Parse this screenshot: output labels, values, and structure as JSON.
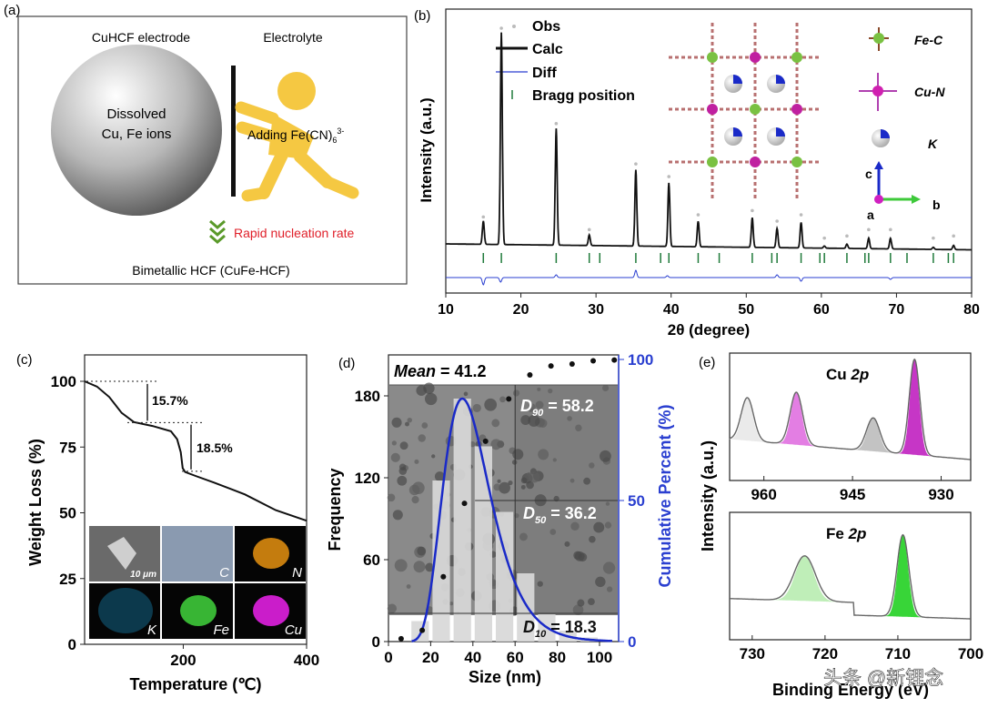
{
  "panel_a": {
    "label": "(a)",
    "electrode_title": "CuHCF electrode",
    "electrolyte_title": "Electrolyte",
    "sphere_text_1": "Dissolved",
    "sphere_text_2": "Cu, Fe ions",
    "adding_text": "Adding Fe(CN)",
    "adding_sub": "6",
    "adding_sup": "3-",
    "nucleation_text": "Rapid nucleation rate",
    "product_text": "Bimetallic HCF (CuFe-HCF)",
    "colors": {
      "figure": "#f5c842",
      "arrow": "#5a9a2a",
      "nucleation": "#e0202a"
    }
  },
  "chart_data": [
    {
      "panel": "(b)",
      "type": "line",
      "xlabel": "2θ (degree)",
      "ylabel": "Intensity (a.u.)",
      "xlim": [
        10,
        80
      ],
      "xticks": [
        10,
        20,
        30,
        40,
        50,
        60,
        70,
        80
      ],
      "legend": [
        "Obs",
        "Calc",
        "Diff",
        "Bragg position"
      ],
      "legend_placement": "top-left",
      "peaks": [
        [
          15.0,
          11
        ],
        [
          17.4,
          100
        ],
        [
          24.7,
          55
        ],
        [
          29.1,
          5
        ],
        [
          35.3,
          36
        ],
        [
          39.7,
          30
        ],
        [
          43.6,
          12
        ],
        [
          50.8,
          14
        ],
        [
          54.1,
          9
        ],
        [
          57.3,
          12
        ],
        [
          60.4,
          1
        ],
        [
          63.4,
          2
        ],
        [
          66.3,
          5
        ],
        [
          69.2,
          5
        ],
        [
          74.9,
          1
        ],
        [
          77.6,
          2
        ]
      ],
      "bragg_positions": [
        15.0,
        17.4,
        24.7,
        29.1,
        30.5,
        35.3,
        38.6,
        39.7,
        43.6,
        46.4,
        50.8,
        53.4,
        54.1,
        57.3,
        59.8,
        60.4,
        63.4,
        65.8,
        66.3,
        69.2,
        71.4,
        74.9,
        76.9,
        77.6
      ],
      "diff_features": [
        [
          15.0,
          -8
        ],
        [
          17.3,
          -5
        ],
        [
          24.7,
          3
        ],
        [
          35.3,
          8
        ],
        [
          39.5,
          2
        ],
        [
          54.1,
          3
        ],
        [
          57.3,
          -4
        ],
        [
          69.2,
          -2
        ]
      ],
      "colors": {
        "calc": "#111111",
        "diff": "#2a3fd0",
        "bragg": "#1f7a3a",
        "obs": "#bbbbbb"
      },
      "structure_legend": [
        "Fe-C",
        "Cu-N",
        "K"
      ],
      "axes_labels": [
        "c",
        "b",
        "a"
      ]
    },
    {
      "panel": "(c)",
      "type": "line",
      "xlabel": "Temperature (℃)",
      "ylabel": "Weight Loss (%)",
      "xlim": [
        40,
        400
      ],
      "ylim": [
        0,
        100
      ],
      "xticks": [
        200,
        400
      ],
      "yticks": [
        0,
        25,
        50,
        75,
        100
      ],
      "x": [
        40,
        60,
        80,
        100,
        120,
        150,
        180,
        190,
        196,
        199,
        203,
        220,
        250,
        300,
        350,
        400
      ],
      "y": [
        100,
        98,
        94,
        88,
        84.5,
        83,
        81,
        78,
        73,
        67,
        65.5,
        64,
        61.5,
        57,
        51,
        47
      ],
      "annotations": [
        "15.7%",
        "18.5%"
      ],
      "mapping_labels": [
        "10 μm",
        "C",
        "N",
        "K",
        "Fe",
        "Cu"
      ],
      "mapping_colors": [
        "#6a6a6a",
        "#8a9ab0",
        "#d98a10",
        "#1a9ad0",
        "#3ec93a",
        "#e020e0"
      ]
    },
    {
      "panel": "(d)",
      "type": "bar",
      "xlabel": "Size (nm)",
      "ylabel": "Frequency",
      "y2label": "Cumulative Percent (%)",
      "xlim": [
        0,
        108
      ],
      "ylim": [
        0,
        200
      ],
      "y2lim": [
        0,
        100
      ],
      "xticks": [
        0,
        20,
        40,
        60,
        80,
        100
      ],
      "yticks": [
        0,
        60,
        120,
        180
      ],
      "y2ticks": [
        0,
        50,
        100
      ],
      "bins": [
        [
          10,
          20
        ],
        [
          20,
          30
        ],
        [
          30,
          40
        ],
        [
          40,
          50
        ],
        [
          50,
          60
        ],
        [
          60,
          70
        ],
        [
          70,
          80
        ],
        [
          80,
          90
        ],
        [
          90,
          100
        ]
      ],
      "values": [
        15,
        118,
        178,
        143,
        95,
        50,
        20,
        8,
        3
      ],
      "cumulative": {
        "x": [
          6,
          16,
          26,
          36,
          46,
          57,
          67,
          77,
          87,
          97,
          107
        ],
        "y": [
          1,
          4,
          23,
          49,
          71,
          86,
          94.5,
          97.7,
          98.4,
          99.5,
          99.8
        ]
      },
      "fit_peak": 35,
      "annotations": {
        "mean_label": "Mean",
        "mean_value": "= 41.2",
        "d90": "= 58.2",
        "d50": "= 36.2",
        "d10": "= 18.3",
        "d_letter": "D",
        "d90_sub": "90",
        "d50_sub": "50",
        "d10_sub": "10"
      },
      "colors": {
        "fit": "#1a2ac8",
        "y2axis": "#2a3fd0",
        "bars": "#d8d8d8"
      }
    },
    {
      "panel": "(e)",
      "type": "line",
      "ylabel": "Intensity (a.u.)",
      "xlabel": "Binding Energy (eV)",
      "subplots": [
        {
          "title_el": "Cu ",
          "title_orb": "2p",
          "xlim": [
            965.8,
            925
          ],
          "xticks": [
            960,
            945,
            930
          ],
          "peaks": [
            [
              962.8,
              0.45,
              1.3,
              "#e8e8e8"
            ],
            [
              954.5,
              0.55,
              1.3,
              "#e070e0"
            ],
            [
              941.5,
              0.35,
              1.4,
              "#bdbdbd"
            ],
            [
              934.5,
              1.0,
              1.1,
              "#c020c0"
            ]
          ]
        },
        {
          "title_el": "Fe ",
          "title_orb": "2p",
          "xlim": [
            733.1,
            700
          ],
          "xticks": [
            730,
            720,
            710,
            700
          ],
          "peaks": [
            [
              722.8,
              0.55,
              1.8,
              "#b8ecb0"
            ],
            [
              709.3,
              1.0,
              1.0,
              "#22d022"
            ]
          ]
        }
      ]
    }
  ],
  "panel_labels": {
    "b": "(b)",
    "c": "(c)",
    "d": "(d)",
    "e": "(e)"
  },
  "watermark": "头条 @新锂念"
}
